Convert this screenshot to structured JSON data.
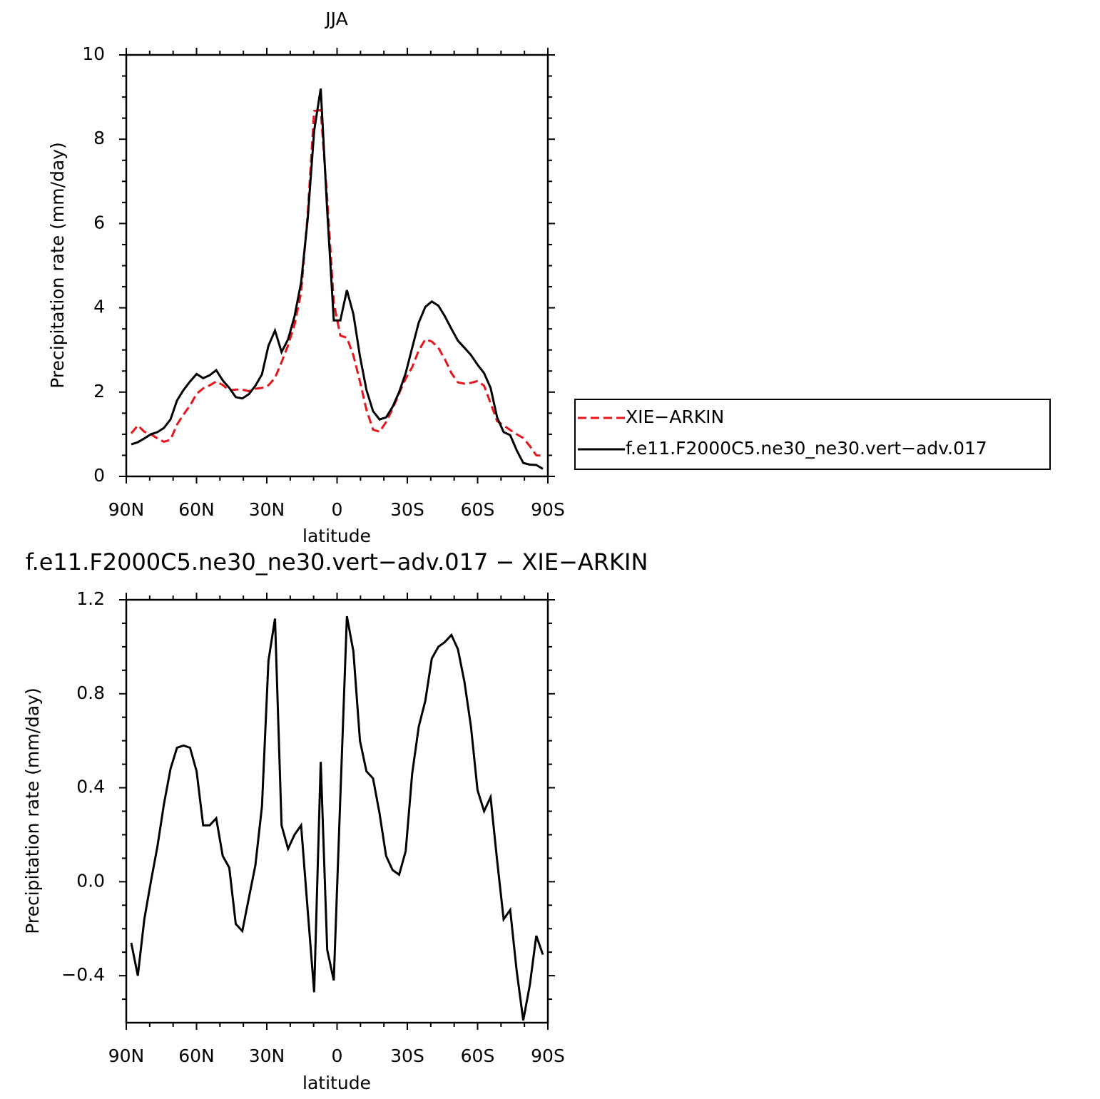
{
  "chart_data": [
    {
      "type": "line",
      "title": "JJA",
      "xlabel": "latitude",
      "ylabel": "Precipitation rate (mm/day)",
      "x": [
        87.86,
        85.07,
        82.28,
        79.49,
        76.7,
        73.92,
        71.13,
        68.34,
        65.55,
        62.76,
        59.97,
        57.18,
        54.39,
        51.6,
        48.81,
        46.03,
        43.24,
        40.45,
        37.66,
        34.87,
        32.08,
        29.29,
        26.5,
        23.71,
        20.92,
        18.14,
        15.35,
        12.56,
        9.77,
        6.98,
        4.19,
        1.4,
        -1.4,
        -4.19,
        -6.98,
        -9.77,
        -12.56,
        -15.35,
        -18.14,
        -20.92,
        -23.71,
        -26.5,
        -29.29,
        -32.08,
        -34.87,
        -37.66,
        -40.45,
        -43.24,
        -46.03,
        -48.81,
        -51.6,
        -54.39,
        -57.18,
        -59.97,
        -62.76,
        -65.55,
        -68.34,
        -71.13,
        -73.92,
        -76.7,
        -79.49,
        -82.28,
        -85.07,
        -87.86
      ],
      "series": [
        {
          "name": "XIE−ARKIN",
          "color": "#e8141a",
          "dashed": true,
          "values": [
            1.02,
            1.21,
            1.06,
            1.0,
            0.9,
            0.82,
            0.87,
            1.23,
            1.47,
            1.68,
            1.96,
            2.09,
            2.16,
            2.25,
            2.17,
            2.04,
            2.06,
            2.06,
            2.02,
            2.08,
            2.1,
            2.16,
            2.34,
            2.71,
            3.11,
            3.6,
            4.36,
            6.22,
            8.67,
            8.69,
            6.59,
            4.12,
            3.34,
            3.29,
            2.87,
            2.25,
            1.58,
            1.11,
            1.06,
            1.29,
            1.6,
            1.97,
            2.32,
            2.59,
            2.99,
            3.25,
            3.2,
            3.05,
            2.78,
            2.45,
            2.23,
            2.2,
            2.22,
            2.26,
            2.15,
            1.74,
            1.31,
            1.21,
            1.1,
            1.0,
            0.91,
            0.72,
            0.5,
            0.49
          ]
        },
        {
          "name": "f.e11.F2000C5.ne30_ne30.vert−adv.017",
          "color": "#000000",
          "dashed": false,
          "values": [
            0.76,
            0.81,
            0.9,
            1.0,
            1.05,
            1.15,
            1.35,
            1.8,
            2.05,
            2.25,
            2.43,
            2.33,
            2.4,
            2.52,
            2.28,
            2.1,
            1.88,
            1.85,
            1.95,
            2.15,
            2.42,
            3.1,
            3.46,
            2.95,
            3.25,
            3.8,
            4.6,
            6.1,
            8.2,
            9.2,
            6.3,
            3.7,
            3.7,
            4.42,
            3.85,
            2.85,
            2.05,
            1.55,
            1.35,
            1.4,
            1.65,
            2.0,
            2.45,
            3.05,
            3.65,
            4.02,
            4.15,
            4.05,
            3.8,
            3.5,
            3.22,
            3.05,
            2.88,
            2.65,
            2.45,
            2.1,
            1.4,
            1.05,
            0.98,
            0.62,
            0.32,
            0.28,
            0.27,
            0.18
          ]
        }
      ],
      "xlim": [
        90,
        -90
      ],
      "xticks": [
        {
          "value": 90,
          "label": "90N"
        },
        {
          "value": 60,
          "label": "60N"
        },
        {
          "value": 30,
          "label": "30N"
        },
        0,
        {
          "value": -30,
          "label": "30S"
        },
        {
          "value": -60,
          "label": "60S"
        },
        {
          "value": -90,
          "label": "90S"
        }
      ],
      "ylim": [
        0,
        10
      ],
      "yticks": [
        0,
        2,
        4,
        6,
        8,
        10
      ],
      "legend": "outside right"
    },
    {
      "type": "line",
      "title": "f.e11.F2000C5.ne30_ne30.vert−adv.017 − XIE−ARKIN",
      "xlabel": "latitude",
      "ylabel": "Precipitation rate (mm/day)",
      "x": [
        87.86,
        85.07,
        82.28,
        79.49,
        76.7,
        73.92,
        71.13,
        68.34,
        65.55,
        62.76,
        59.97,
        57.18,
        54.39,
        51.6,
        48.81,
        46.03,
        43.24,
        40.45,
        37.66,
        34.87,
        32.08,
        29.29,
        26.5,
        23.71,
        20.92,
        18.14,
        15.35,
        12.56,
        9.77,
        6.98,
        4.19,
        1.4,
        -1.4,
        -4.19,
        -6.98,
        -9.77,
        -12.56,
        -15.35,
        -18.14,
        -20.92,
        -23.71,
        -26.5,
        -29.29,
        -32.08,
        -34.87,
        -37.66,
        -40.45,
        -43.24,
        -46.03,
        -48.81,
        -51.6,
        -54.39,
        -57.18,
        -59.97,
        -62.76,
        -65.55,
        -68.34,
        -71.13,
        -73.92,
        -76.7,
        -79.49,
        -82.28,
        -85.07,
        -87.86
      ],
      "series": [
        {
          "color": "#000000",
          "dashed": false,
          "values": [
            -0.26,
            -0.4,
            -0.16,
            0.0,
            0.15,
            0.33,
            0.48,
            0.57,
            0.58,
            0.57,
            0.47,
            0.24,
            0.24,
            0.27,
            0.11,
            0.06,
            -0.18,
            -0.21,
            -0.07,
            0.07,
            0.32,
            0.94,
            1.12,
            0.24,
            0.14,
            0.2,
            0.24,
            -0.12,
            -0.47,
            0.51,
            -0.29,
            -0.42,
            0.36,
            1.13,
            0.98,
            0.6,
            0.47,
            0.44,
            0.29,
            0.11,
            0.05,
            0.03,
            0.13,
            0.46,
            0.66,
            0.77,
            0.95,
            1.0,
            1.02,
            1.05,
            0.99,
            0.85,
            0.66,
            0.39,
            0.3,
            0.36,
            0.09,
            -0.16,
            -0.12,
            -0.38,
            -0.59,
            -0.44,
            -0.23,
            -0.31
          ]
        }
      ],
      "xlim": [
        90,
        -90
      ],
      "xticks": [
        {
          "value": 90,
          "label": "90N"
        },
        {
          "value": 60,
          "label": "60N"
        },
        {
          "value": 30,
          "label": "30N"
        },
        0,
        {
          "value": -30,
          "label": "30S"
        },
        {
          "value": -60,
          "label": "60S"
        },
        {
          "value": -90,
          "label": "90S"
        }
      ],
      "ylim": [
        -0.6,
        1.2
      ],
      "yticks": [
        {
          "value": -0.4,
          "label": "−0.4"
        },
        {
          "value": 0,
          "label": "0.0"
        },
        0.4,
        0.8,
        1.2
      ]
    }
  ]
}
